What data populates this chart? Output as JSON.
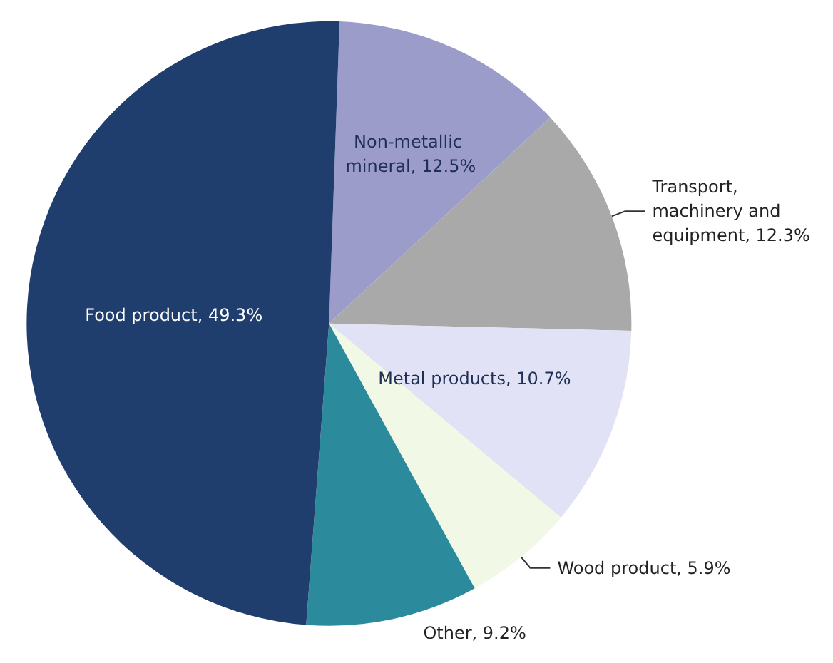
{
  "chart_data": {
    "type": "pie",
    "categories": [
      "Non-metallic mineral",
      "Transport, machinery and equipment",
      "Metal products",
      "Wood product",
      "Other",
      "Food product"
    ],
    "values": [
      12.5,
      12.3,
      10.7,
      5.9,
      9.2,
      49.3
    ],
    "value_labels": [
      "12.5%",
      "12.3%",
      "10.7%",
      "5.9%",
      "9.2%",
      "49.3%"
    ],
    "colors": [
      "#9c9ccb",
      "#a9a9a9",
      "#e2e2f6",
      "#f1f8e6",
      "#2b8a9c",
      "#1f3e6d"
    ],
    "legend": false
  }
}
